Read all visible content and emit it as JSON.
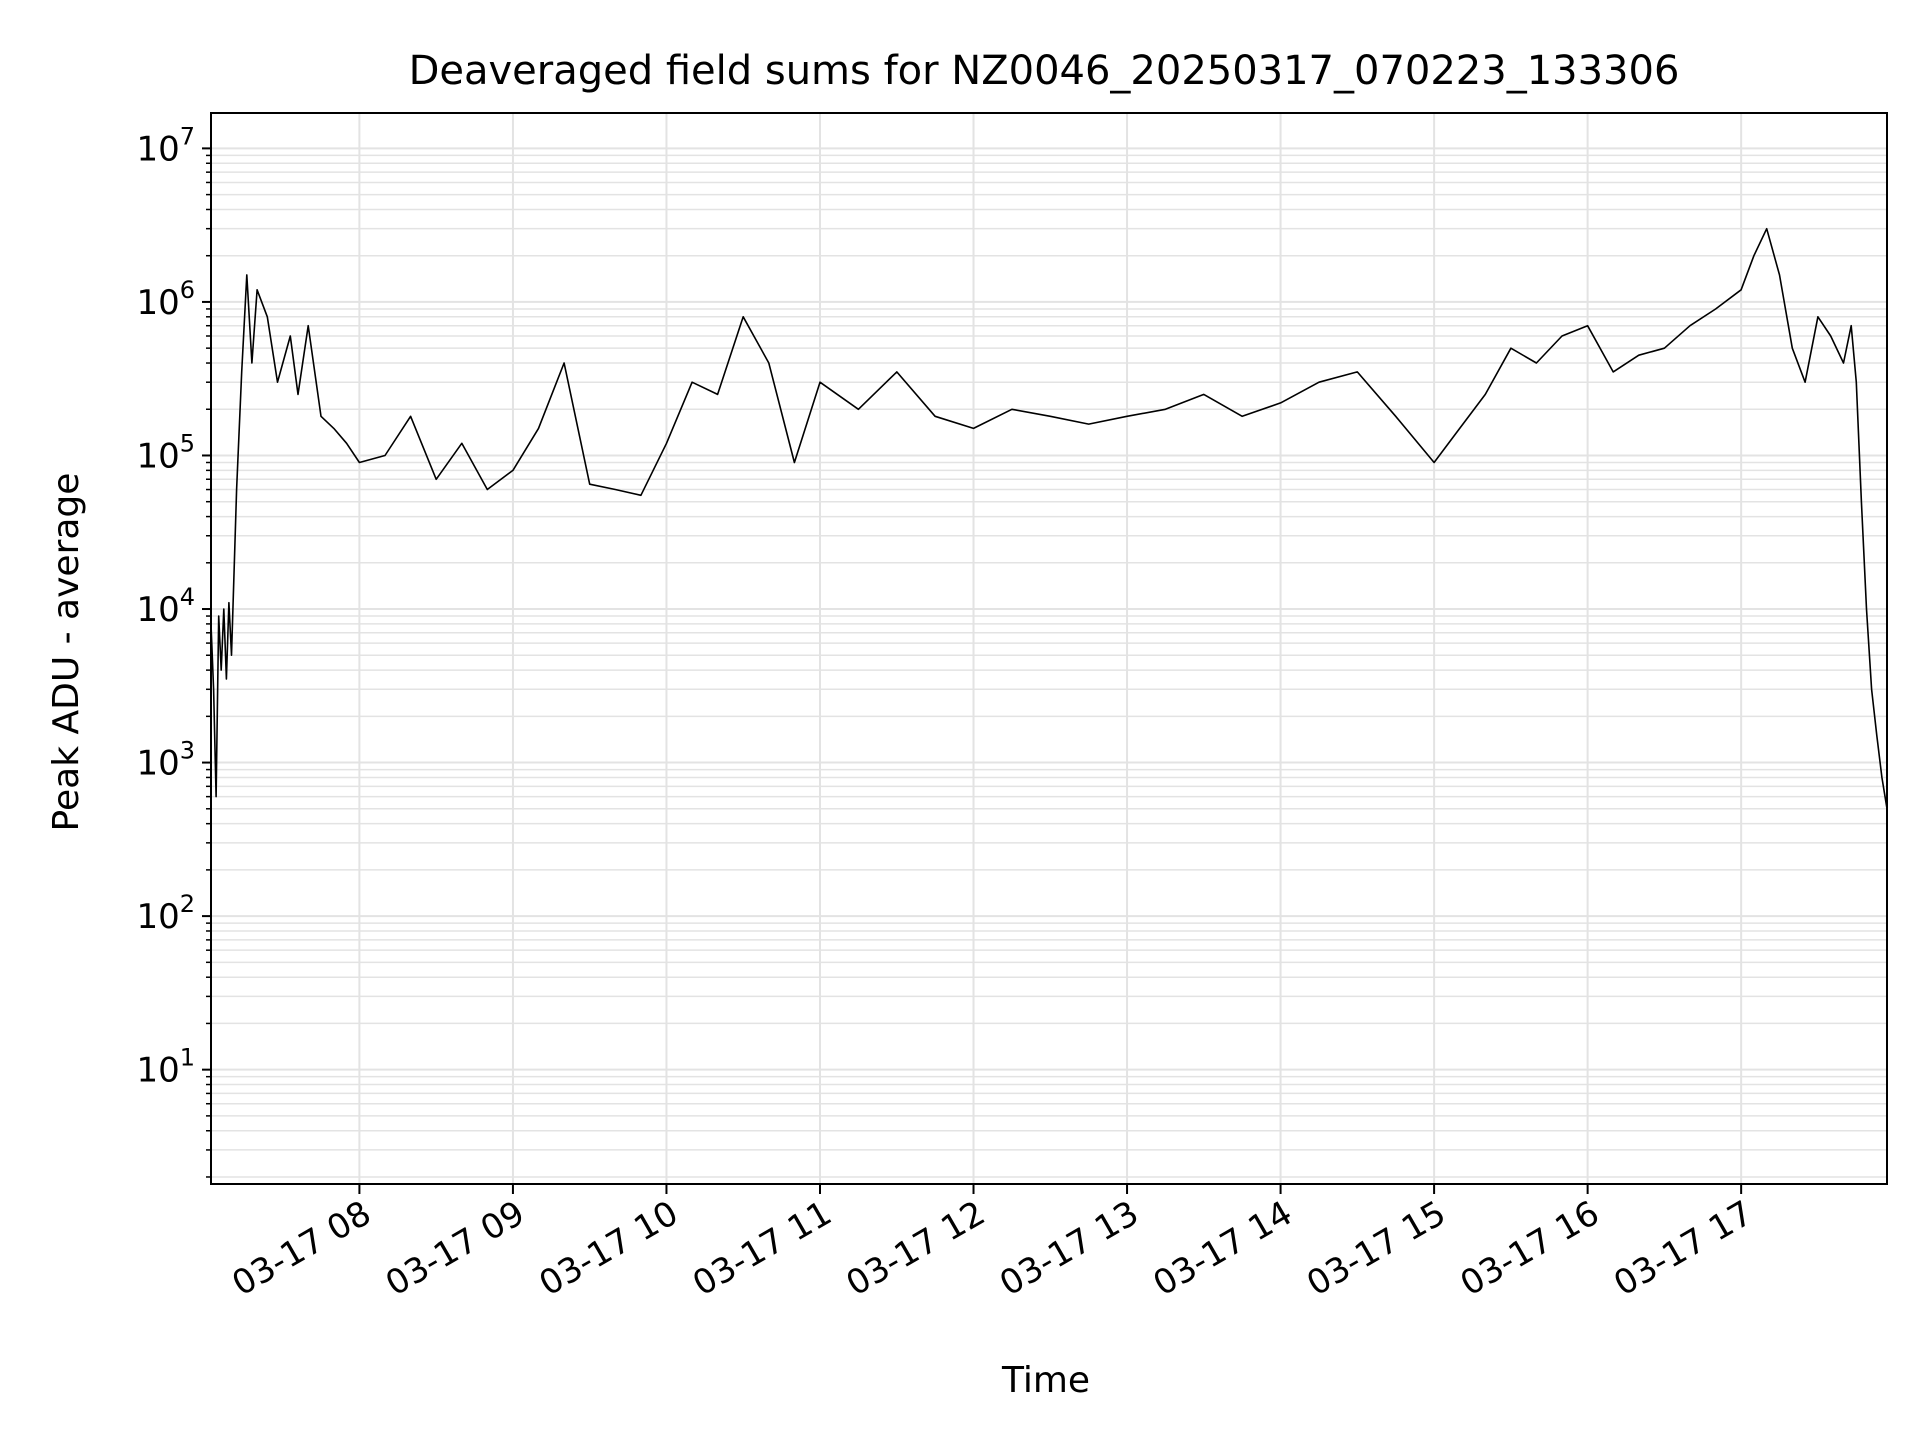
{
  "chart_data": {
    "type": "line",
    "title": "Deaveraged field sums for NZ0046_20250317_070223_133306",
    "xlabel": "Time",
    "ylabel": "Peak ADU - average",
    "y_scale": "log",
    "ylim": [
      1.8,
      17000000
    ],
    "xlim": [
      "2025-03-17 07:02",
      "2025-03-17 17:57"
    ],
    "grid": true,
    "legend": "none",
    "line_color": "#000000",
    "grid_color": "#e3e3e3",
    "x_ticks": [
      {
        "t": "2025-03-17 08:00",
        "label": "03-17 08"
      },
      {
        "t": "2025-03-17 09:00",
        "label": "03-17 09"
      },
      {
        "t": "2025-03-17 10:00",
        "label": "03-17 10"
      },
      {
        "t": "2025-03-17 11:00",
        "label": "03-17 11"
      },
      {
        "t": "2025-03-17 12:00",
        "label": "03-17 12"
      },
      {
        "t": "2025-03-17 13:00",
        "label": "03-17 13"
      },
      {
        "t": "2025-03-17 14:00",
        "label": "03-17 14"
      },
      {
        "t": "2025-03-17 15:00",
        "label": "03-17 15"
      },
      {
        "t": "2025-03-17 16:00",
        "label": "03-17 16"
      },
      {
        "t": "2025-03-17 17:00",
        "label": "03-17 17"
      }
    ],
    "y_ticks": [
      {
        "value": 10,
        "base": "10",
        "exp": "1"
      },
      {
        "value": 100,
        "base": "10",
        "exp": "2"
      },
      {
        "value": 1000,
        "base": "10",
        "exp": "3"
      },
      {
        "value": 10000,
        "base": "10",
        "exp": "4"
      },
      {
        "value": 100000,
        "base": "10",
        "exp": "5"
      },
      {
        "value": 1000000,
        "base": "10",
        "exp": "6"
      },
      {
        "value": 10000000,
        "base": "10",
        "exp": "7"
      }
    ],
    "series": [
      {
        "x": [
          "2025-03-17 07:02",
          "2025-03-17 07:03",
          "2025-03-17 07:04",
          "2025-03-17 07:05",
          "2025-03-17 07:06",
          "2025-03-17 07:07",
          "2025-03-17 07:08",
          "2025-03-17 07:09",
          "2025-03-17 07:10",
          "2025-03-17 07:12",
          "2025-03-17 07:14",
          "2025-03-17 07:16",
          "2025-03-17 07:18",
          "2025-03-17 07:20",
          "2025-03-17 07:24",
          "2025-03-17 07:28",
          "2025-03-17 07:33",
          "2025-03-17 07:36",
          "2025-03-17 07:40",
          "2025-03-17 07:45",
          "2025-03-17 07:50",
          "2025-03-17 07:55",
          "2025-03-17 08:00",
          "2025-03-17 08:10",
          "2025-03-17 08:20",
          "2025-03-17 08:30",
          "2025-03-17 08:40",
          "2025-03-17 08:50",
          "2025-03-17 09:00",
          "2025-03-17 09:10",
          "2025-03-17 09:20",
          "2025-03-17 09:30",
          "2025-03-17 09:40",
          "2025-03-17 09:50",
          "2025-03-17 10:00",
          "2025-03-17 10:10",
          "2025-03-17 10:20",
          "2025-03-17 10:30",
          "2025-03-17 10:40",
          "2025-03-17 10:50",
          "2025-03-17 11:00",
          "2025-03-17 11:15",
          "2025-03-17 11:30",
          "2025-03-17 11:45",
          "2025-03-17 12:00",
          "2025-03-17 12:15",
          "2025-03-17 12:30",
          "2025-03-17 12:45",
          "2025-03-17 13:00",
          "2025-03-17 13:15",
          "2025-03-17 13:30",
          "2025-03-17 13:45",
          "2025-03-17 14:00",
          "2025-03-17 14:15",
          "2025-03-17 14:30",
          "2025-03-17 14:45",
          "2025-03-17 15:00",
          "2025-03-17 15:10",
          "2025-03-17 15:20",
          "2025-03-17 15:30",
          "2025-03-17 15:40",
          "2025-03-17 15:50",
          "2025-03-17 16:00",
          "2025-03-17 16:10",
          "2025-03-17 16:20",
          "2025-03-17 16:30",
          "2025-03-17 16:40",
          "2025-03-17 16:50",
          "2025-03-17 17:00",
          "2025-03-17 17:05",
          "2025-03-17 17:10",
          "2025-03-17 17:15",
          "2025-03-17 17:20",
          "2025-03-17 17:25",
          "2025-03-17 17:30",
          "2025-03-17 17:35",
          "2025-03-17 17:40",
          "2025-03-17 17:43",
          "2025-03-17 17:45",
          "2025-03-17 17:47",
          "2025-03-17 17:49",
          "2025-03-17 17:51",
          "2025-03-17 17:53",
          "2025-03-17 17:55",
          "2025-03-17 17:57"
        ],
        "y": [
          8000,
          3000,
          600,
          9000,
          4000,
          10000,
          3500,
          11000,
          5000,
          60000,
          350000,
          1500000,
          400000,
          1200000,
          800000,
          300000,
          600000,
          250000,
          700000,
          180000,
          150000,
          120000,
          90000,
          100000,
          180000,
          70000,
          120000,
          60000,
          80000,
          150000,
          400000,
          65000,
          60000,
          55000,
          120000,
          300000,
          250000,
          800000,
          400000,
          90000,
          300000,
          200000,
          350000,
          180000,
          150000,
          200000,
          180000,
          160000,
          180000,
          200000,
          250000,
          180000,
          220000,
          300000,
          350000,
          180000,
          90000,
          150000,
          250000,
          500000,
          400000,
          600000,
          700000,
          350000,
          450000,
          500000,
          700000,
          900000,
          1200000,
          2000000,
          3000000,
          1500000,
          500000,
          300000,
          800000,
          600000,
          400000,
          700000,
          300000,
          50000,
          10000,
          3000,
          1500,
          800,
          500
        ]
      }
    ]
  }
}
